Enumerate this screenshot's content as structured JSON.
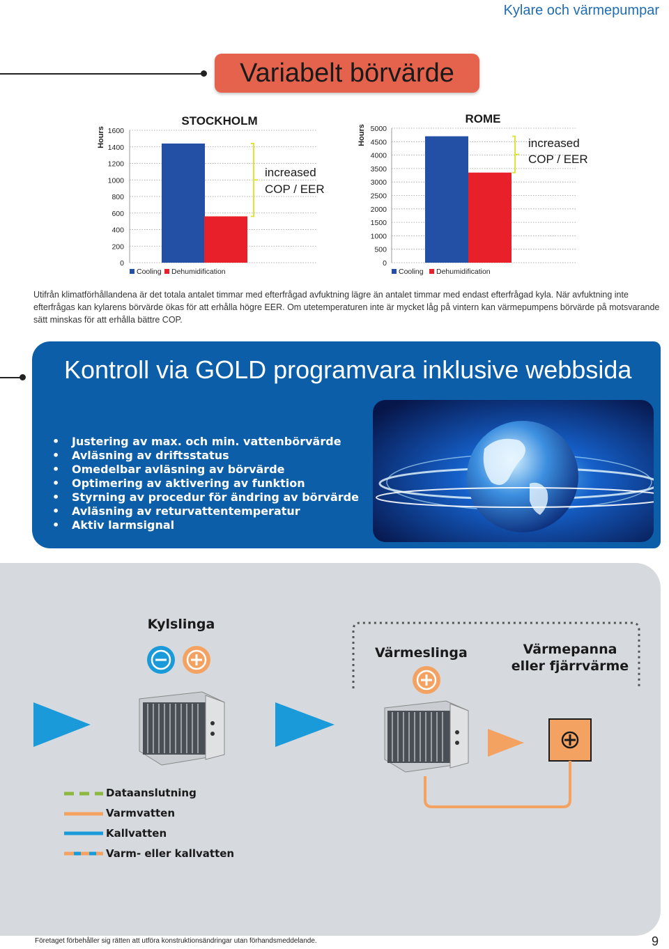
{
  "header": {
    "section_title": "Kylare och värmepumpar"
  },
  "variable_setpoint": {
    "title": "Variabelt börvärde"
  },
  "chart_data": [
    {
      "type": "bar",
      "title": "STOCKHOLM",
      "ylabel": "Hours",
      "ylim": [
        0,
        1600
      ],
      "yticks": [
        "0",
        "200",
        "400",
        "600",
        "800",
        "1000",
        "1200",
        "1400",
        "1600"
      ],
      "categories": [
        "Cooling",
        "Dehumidification"
      ],
      "legend": [
        "Cooling",
        "Dehumidification"
      ],
      "values": [
        1440,
        560
      ],
      "colors": [
        "#2350a5",
        "#e8202a"
      ],
      "annotation": [
        "increased",
        "COP / EER"
      ]
    },
    {
      "type": "bar",
      "title": "ROME",
      "ylabel": "Hours",
      "ylim": [
        0,
        5000
      ],
      "yticks": [
        "0",
        "500",
        "1000",
        "1500",
        "2000",
        "2500",
        "3000",
        "3500",
        "4000",
        "4500",
        "5000"
      ],
      "categories": [
        "Cooling",
        "Dehumidification"
      ],
      "legend": [
        "Cooling",
        "Dehumidification"
      ],
      "values": [
        4700,
        3350
      ],
      "colors": [
        "#2350a5",
        "#e8202a"
      ],
      "annotation": [
        "increased",
        "COP / EER"
      ]
    }
  ],
  "description": "Utifrån klimatförhållandena är det totala antalet timmar med efterfrågad avfuktning lägre än antalet timmar med endast efterfrågad kyla.  När avfuktning inte efterfrågas kan kylarens börvärde ökas för att erhålla högre EER. Om utetemperaturen inte är mycket låg på vintern kan värmepumpens börvärde på motsvarande sätt minskas för att erhålla bättre COP.",
  "gold_section": {
    "title": "Kontroll via GOLD programvara inklusive webbsida",
    "bullets": [
      "Justering av max. och min. vattenbörvärde",
      "Avläsning av driftsstatus",
      "Omedelbar avläsning av börvärde",
      "Optimering av aktivering av funktion",
      "Styrning av procedur för ändring av börvärde",
      "Avläsning av returvattentemperatur",
      "Aktiv larmsignal"
    ]
  },
  "diagram": {
    "cooling_coil": "Kylslinga",
    "heating_coil": "Värmeslinga",
    "boiler_line1": "Värmepanna",
    "boiler_line2": "eller fjärrvärme",
    "legend": [
      {
        "label": "Dataanslutning",
        "color": "#8cb83f"
      },
      {
        "label": "Varmvatten",
        "color": "#f4a261"
      },
      {
        "label": "Kallvatten",
        "color": "#1a9ad9"
      },
      {
        "label": "Varm- eller kallvatten",
        "color": "#f4a261"
      }
    ],
    "colors": {
      "blue": "#1a9ad9",
      "orange": "#f4a261",
      "arrow_blue": "#1a9ad9"
    }
  },
  "footer": {
    "disclaimer": "Företaget förbehåller sig rätten att utföra konstruktionsändringar utan förhandsmeddelande.",
    "page": "9"
  }
}
